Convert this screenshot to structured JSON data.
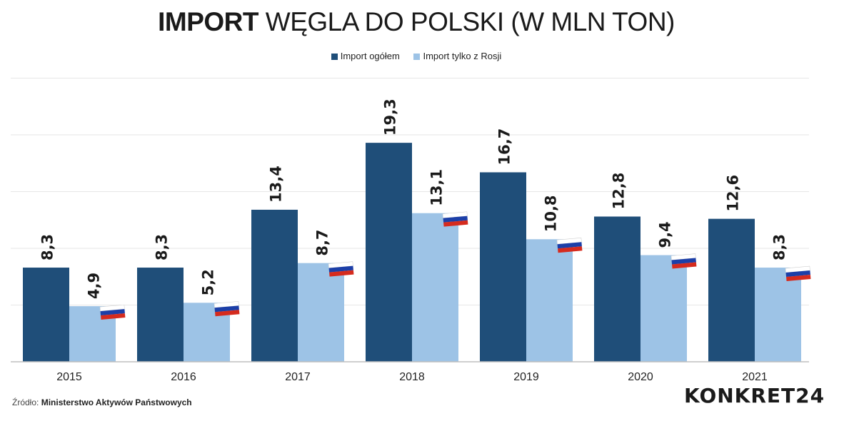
{
  "title": {
    "bold": "IMPORT",
    "rest": "WĘGLA DO POLSKI (W MLN TON)"
  },
  "legend": [
    {
      "label": "Import ogółem",
      "color": "#1f4e79"
    },
    {
      "label": "Import tylko z Rosji",
      "color": "#9dc3e6"
    }
  ],
  "source": {
    "prefix": "Źródło:",
    "text": "Ministerstwo Aktywów Państwowych"
  },
  "logo": "KONKRET24",
  "flag_icon": "russian-flag-icon",
  "chart_data": {
    "type": "bar",
    "categories": [
      "2015",
      "2016",
      "2017",
      "2018",
      "2019",
      "2020",
      "2021"
    ],
    "series": [
      {
        "name": "Import ogółem",
        "color": "#1f4e79",
        "values": [
          8.3,
          8.3,
          13.4,
          19.3,
          16.7,
          12.8,
          12.6
        ],
        "labels": [
          "8,3",
          "8,3",
          "13,4",
          "19,3",
          "16,7",
          "12,8",
          "12,6"
        ]
      },
      {
        "name": "Import tylko z Rosji",
        "color": "#9dc3e6",
        "values": [
          4.9,
          5.2,
          8.7,
          13.1,
          10.8,
          9.4,
          8.3
        ],
        "labels": [
          "4,9",
          "5,2",
          "8,7",
          "13,1",
          "10,8",
          "9,4",
          "8,3"
        ]
      }
    ],
    "title": "IMPORT WĘGLA DO POLSKI (W MLN TON)",
    "xlabel": "",
    "ylabel": "",
    "ylim": [
      0,
      25
    ],
    "grid": true,
    "legend_position": "top"
  }
}
